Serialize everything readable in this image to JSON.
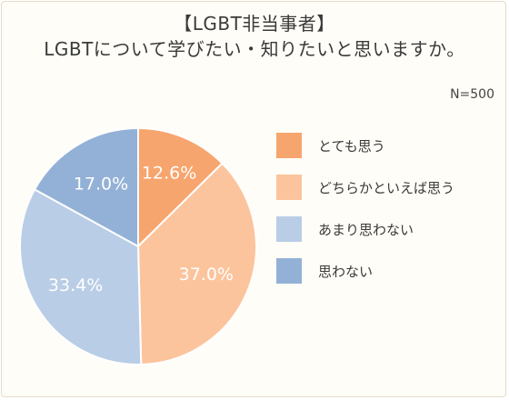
{
  "title": {
    "line1": "【LGBT非当事者】",
    "line2": "LGBTについて学びたい・知りたいと思いますか。"
  },
  "sample_size": "N=500",
  "chart_data": {
    "type": "pie",
    "title": "【LGBT非当事者】LGBTについて学びたい・知りたいと思いますか。",
    "categories": [
      "とても思う",
      "どちらかといえば思う",
      "あまり思わない",
      "思わない"
    ],
    "values": [
      12.6,
      37.0,
      33.4,
      17.0
    ],
    "value_labels": [
      "12.6%",
      "37.0%",
      "33.4%",
      "17.0%"
    ],
    "colors": [
      "#f7a56e",
      "#fcc49c",
      "#b9cde6",
      "#93b1d6"
    ],
    "start": "12 o'clock",
    "direction": "clockwise",
    "legend_position": "right"
  }
}
